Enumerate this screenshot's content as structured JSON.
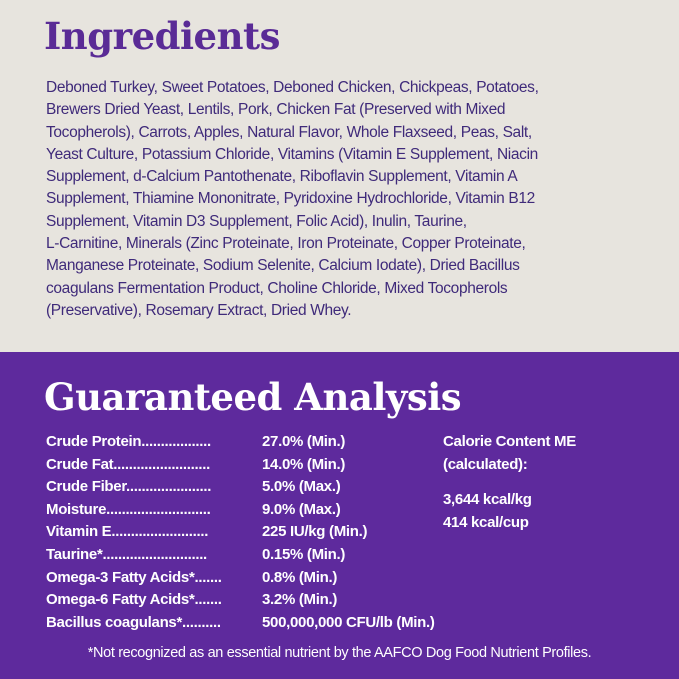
{
  "colors": {
    "top_background": "#e7e4de",
    "bottom_background": "#5e2a9d",
    "heading_purple": "#5a2b96",
    "text_purple": "#3f2a7a",
    "text_white": "#ffffff"
  },
  "ingredients": {
    "title": "Ingredients",
    "lines": [
      "Deboned Turkey, Sweet Potatoes, Deboned Chicken, Chickpeas, Potatoes,",
      "Brewers Dried Yeast, Lentils, Pork, Chicken Fat (Preserved with Mixed",
      "Tocopherols), Carrots, Apples, Natural Flavor, Whole Flaxseed, Peas, Salt,",
      "Yeast Culture, Potassium Chloride, Vitamins (Vitamin E Supplement, Niacin",
      "Supplement, d-Calcium Pantothenate, Riboflavin Supplement, Vitamin A",
      "Supplement, Thiamine Mononitrate, Pyridoxine Hydrochloride, Vitamin B12",
      "Supplement, Vitamin D3 Supplement, Folic Acid), Inulin, Taurine,",
      "L-Carnitine, Minerals (Zinc Proteinate, Iron Proteinate, Copper Proteinate,",
      "Manganese Proteinate, Sodium Selenite, Calcium Iodate), Dried Bacillus",
      "coagulans Fermentation Product, Choline Chloride, Mixed Tocopherols",
      "(Preservative), Rosemary Extract, Dried Whey."
    ]
  },
  "analysis": {
    "title": "Guaranteed Analysis",
    "rows": [
      {
        "label": "Crude  Protein..................",
        "value": "27.0% (Min.)"
      },
      {
        "label": "Crude  Fat.........................",
        "value": "14.0% (Min.)"
      },
      {
        "label": "Crude  Fiber......................",
        "value": "5.0% (Max.)"
      },
      {
        "label": "Moisture...........................",
        "value": "9.0% (Max.)"
      },
      {
        "label": "Vitamin  E.........................",
        "value": "225 IU/kg (Min.)"
      },
      {
        "label": "Taurine*...........................",
        "value": "0.15% (Min.)"
      },
      {
        "label": "Omega-3 Fatty Acids*.......",
        "value": "0.8% (Min.)"
      },
      {
        "label": "Omega-6 Fatty Acids*.......",
        "value": "3.2% (Min.)"
      },
      {
        "label": "Bacillus  coagulans*..........",
        "value": "500,000,000 CFU/lb (Min.)"
      }
    ],
    "calorie": {
      "heading_line1": "Calorie Content ME",
      "heading_line2": "(calculated):",
      "per_kg": "3,644 kcal/kg",
      "per_cup": "414 kcal/cup"
    },
    "footnote": "*Not recognized as an essential nutrient by the AAFCO Dog Food Nutrient Profiles."
  }
}
